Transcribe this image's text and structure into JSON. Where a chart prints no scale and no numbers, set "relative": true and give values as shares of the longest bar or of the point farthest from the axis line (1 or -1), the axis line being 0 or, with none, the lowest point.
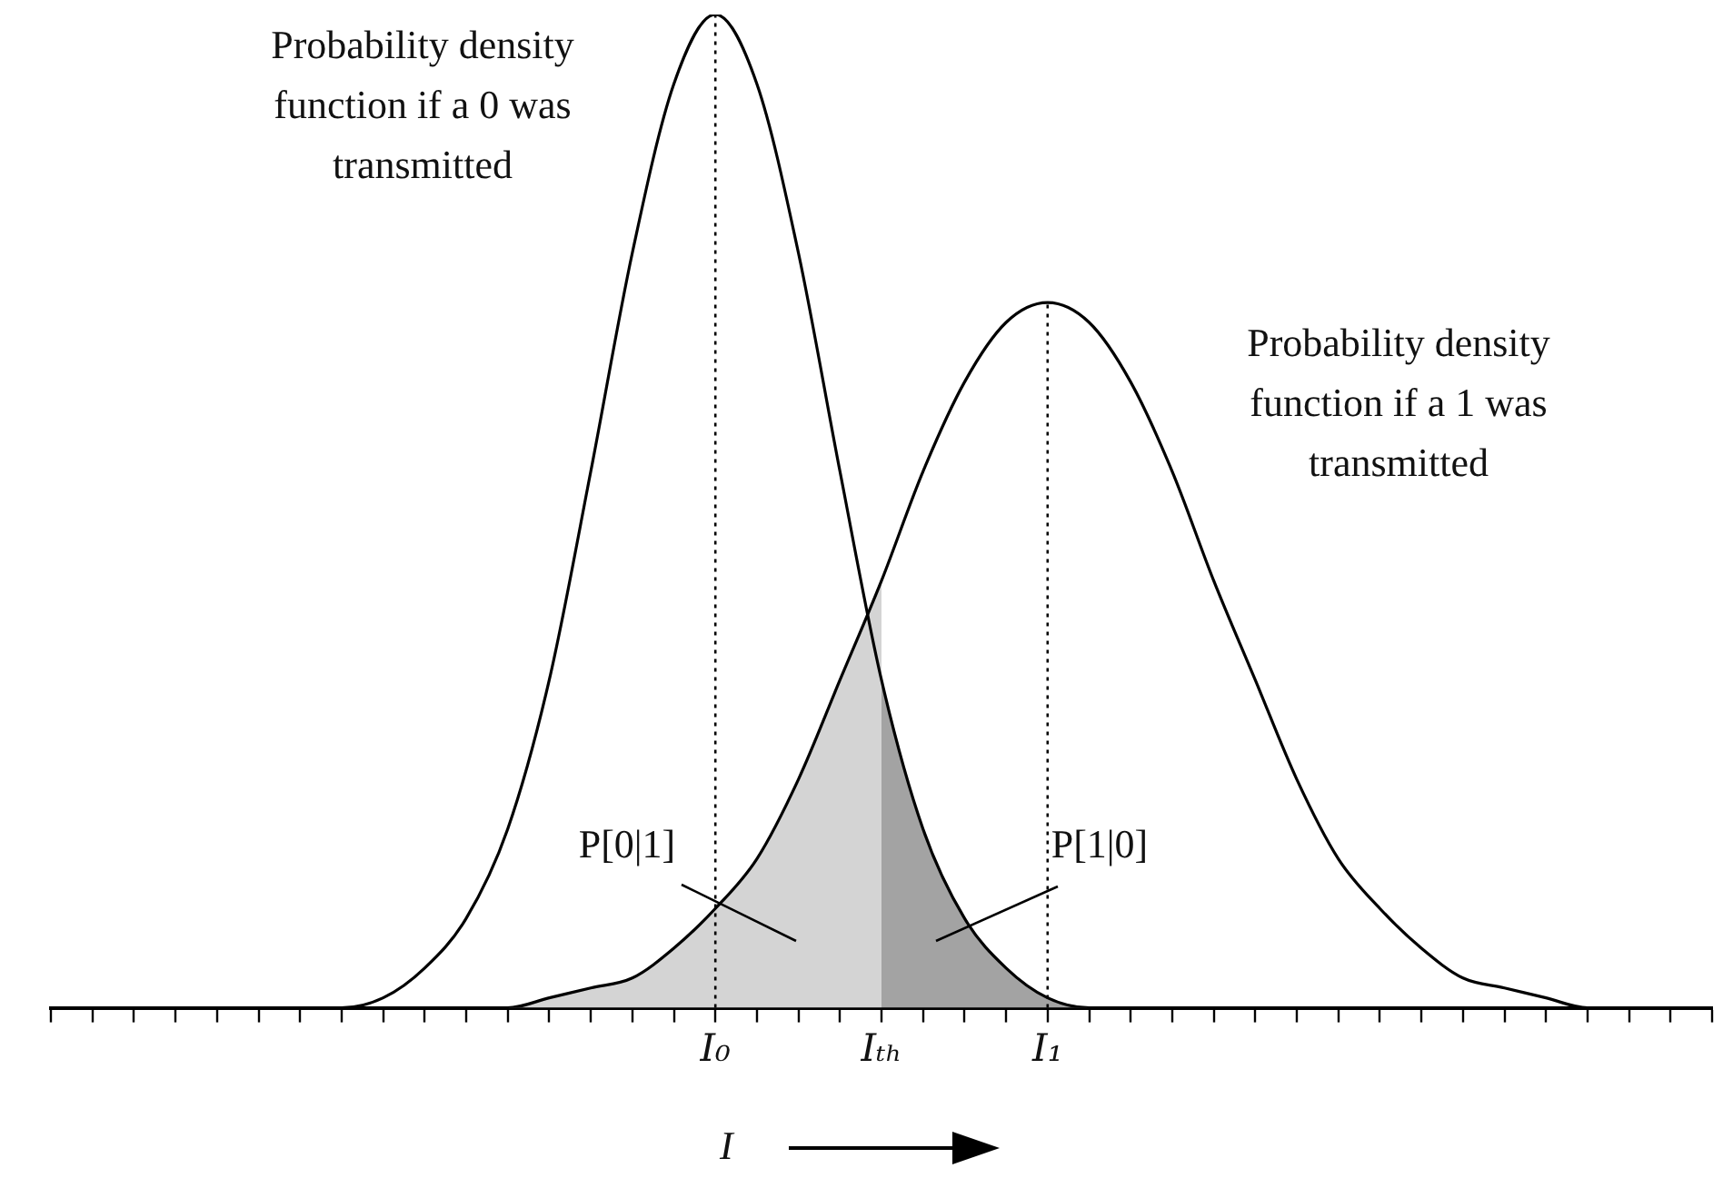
{
  "chart_data": {
    "type": "line",
    "relative": true,
    "grid": false,
    "legend": false,
    "marker": "none",
    "line_style": "solid",
    "xlabel": "I",
    "categories": [
      null,
      null,
      null,
      null,
      null,
      null,
      null,
      null,
      null,
      null,
      null,
      null,
      null,
      null,
      null,
      null,
      "I₀",
      null,
      null,
      null,
      "Iₜₕ",
      null,
      null,
      null,
      "I₁",
      null,
      null,
      null,
      null,
      null,
      null,
      null,
      null,
      null,
      null,
      null,
      null,
      null,
      null,
      null,
      null
    ],
    "series": [
      {
        "type": "area",
        "color": "#d4d4d4",
        "values": [
          null,
          null,
          null,
          null,
          null,
          null,
          null,
          null,
          null,
          null,
          null,
          0,
          0.01,
          0.02,
          0.03,
          0.06,
          0.1,
          0.15,
          0.23,
          0.33,
          0.43,
          null,
          null,
          null,
          null,
          null,
          null,
          null,
          null,
          null,
          null,
          null,
          null,
          null,
          null,
          null,
          null,
          null,
          null,
          null,
          null
        ]
      },
      {
        "type": "area",
        "color": "#a3a3a3",
        "values": [
          null,
          null,
          null,
          null,
          null,
          null,
          null,
          null,
          null,
          null,
          null,
          null,
          null,
          null,
          null,
          null,
          null,
          null,
          null,
          null,
          0.33,
          0.18,
          0.09,
          0.04,
          0.01,
          0,
          null,
          null,
          null,
          null,
          null,
          null,
          null,
          null,
          null,
          null,
          null,
          null,
          null,
          null,
          null
        ]
      },
      {
        "type": "line",
        "color": "#000000",
        "values": [
          0,
          0,
          0,
          0,
          0,
          0,
          0,
          0,
          0.01,
          0.04,
          0.09,
          0.18,
          0.33,
          0.54,
          0.76,
          0.93,
          1,
          0.93,
          0.76,
          0.54,
          0.33,
          0.18,
          0.09,
          0.04,
          0.01,
          0,
          0,
          0,
          0,
          0,
          0,
          0,
          0,
          0,
          0,
          0,
          0,
          0,
          0,
          0,
          0
        ]
      },
      {
        "type": "line",
        "color": "#000000",
        "values": [
          0,
          0,
          0,
          0,
          0,
          0,
          0,
          0,
          0,
          0,
          0,
          0,
          0.01,
          0.02,
          0.03,
          0.06,
          0.1,
          0.15,
          0.23,
          0.33,
          0.43,
          0.54,
          0.63,
          0.69,
          0.71,
          0.69,
          0.63,
          0.54,
          0.43,
          0.33,
          0.23,
          0.15,
          0.1,
          0.06,
          0.03,
          0.02,
          0.01,
          0,
          0,
          0,
          0
        ]
      }
    ],
    "ref_lines": [
      {
        "axis": "x",
        "value": "I₀",
        "line_style": "dotted"
      },
      {
        "axis": "x",
        "value": "I₁",
        "line_style": "dotted"
      }
    ],
    "annotations": [
      "Probability density function if a 0 was transmitted",
      "Probability density function if a 1 was transmitted",
      "P[0|1]",
      "P[1|0]"
    ]
  }
}
